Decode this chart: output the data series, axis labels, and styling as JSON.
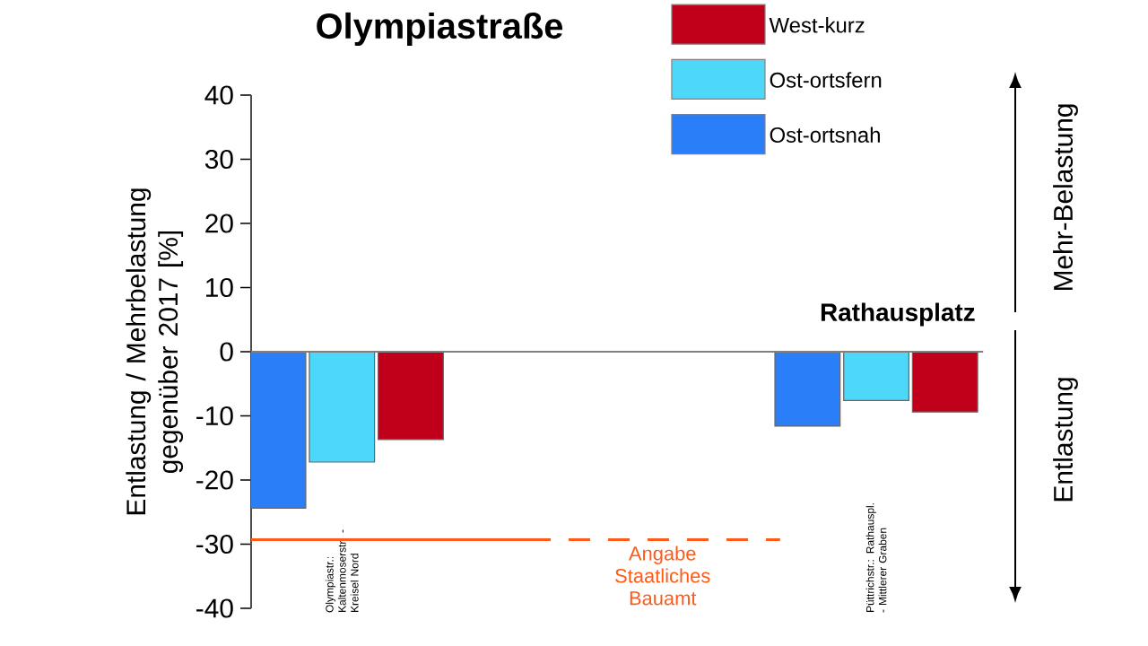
{
  "chart_data": {
    "type": "bar",
    "title": "Olympiastraße",
    "ylabel": "Entlastung / Mehrbelastung gegenüber 2017 [%]",
    "categories": [
      "Olympiastr.: Kaltenmoserstr. - Kreisel Nord",
      "Püttrichstr.: Rathauspl. - Mittlerer Graben"
    ],
    "series": [
      {
        "name": "Ost-ortsnah",
        "color": "#2a7ef7",
        "values": [
          -24.4,
          -11.6
        ]
      },
      {
        "name": "Ost-ortsfern",
        "color": "#4dd8fa",
        "values": [
          -17.2,
          -7.6
        ]
      },
      {
        "name": "West-kurz",
        "color": "#c0001a",
        "values": [
          -13.7,
          -9.4
        ]
      }
    ],
    "ylim": [
      -40,
      40
    ],
    "yticks": [
      -40,
      -30,
      -20,
      -10,
      0,
      10,
      20,
      30,
      40
    ],
    "ref_lines": [
      {
        "axis": "y",
        "value": 0,
        "color": "#808080"
      },
      {
        "axis": "y",
        "value": -29.3,
        "label": "Angabe Staatliches Bauamt",
        "color": "#ff5a1a",
        "line_style": "dashed"
      }
    ],
    "annotations": [
      "Rathausplatz",
      "Mehr-Belastung",
      "Entlastung"
    ],
    "legend": "top right",
    "grid": false
  }
}
